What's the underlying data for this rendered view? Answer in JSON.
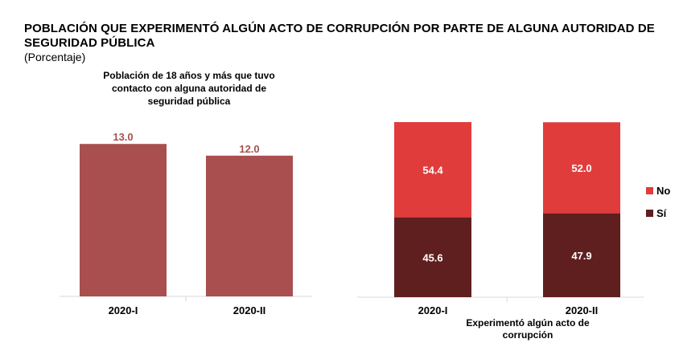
{
  "page": {
    "title": "POBLACIÓN QUE EXPERIMENTÓ ALGÚN ACTO DE CORRUPCIÓN POR PARTE DE ALGUNA AUTORIDAD DE SEGURIDAD PÚBLICA",
    "subtitle": "(Porcentaje)"
  },
  "chart_data": [
    {
      "type": "bar",
      "title": "Población de 18 años y más que tuvo contacto con alguna autoridad de seguridad pública",
      "categories": [
        "2020-I",
        "2020-II"
      ],
      "values": [
        13.0,
        12.0
      ],
      "value_labels": [
        "13.0",
        "12.0"
      ],
      "ylim": [
        0,
        15
      ],
      "color": "#a94f4f",
      "grid": false
    },
    {
      "type": "bar",
      "stacked": true,
      "xlabel": "Experimentó algún acto de corrupción",
      "categories": [
        "2020-I",
        "2020-II"
      ],
      "series": [
        {
          "name": "Sí",
          "values": [
            45.6,
            47.9
          ],
          "labels": [
            "45.6",
            "47.9"
          ],
          "color": "#5f1f1f"
        },
        {
          "name": "No",
          "values": [
            54.4,
            52.0
          ],
          "labels": [
            "54.4",
            "52.0"
          ],
          "color": "#e03c3c"
        }
      ],
      "ylim": [
        0,
        100
      ],
      "legend": "right",
      "grid": false
    }
  ]
}
